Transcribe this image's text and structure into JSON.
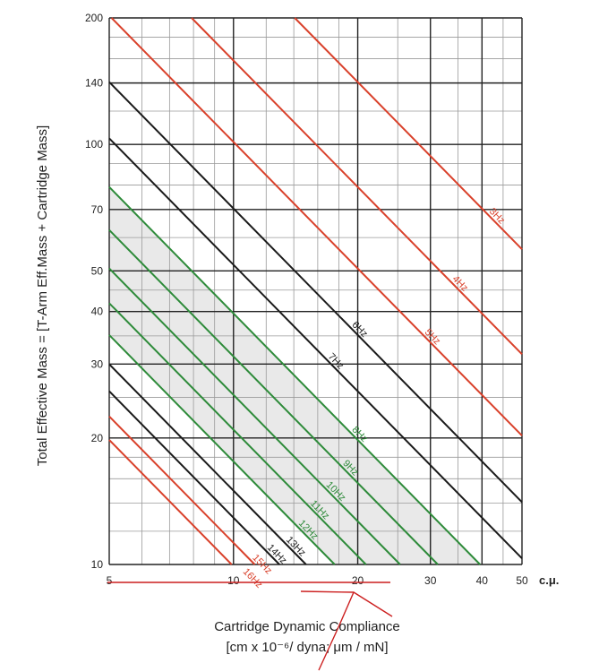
{
  "chart_data": {
    "type": "line",
    "title": "",
    "xlabel": "Cartridge Dynamic Compliance",
    "xlabel_units": "[cm x 10⁻⁶/ dyna; μm / mN]",
    "x_unit_tag": "c.μ.",
    "ylabel": "Total Effective Mass = [T-Arm Eff.Mass + Cartridge Mass]",
    "x_scale": "log",
    "y_scale": "log",
    "xlim": [
      5,
      50
    ],
    "ylim": [
      10,
      200
    ],
    "x_ticks": [
      "5",
      "10",
      "20",
      "30",
      "40",
      "50"
    ],
    "y_ticks": [
      "10",
      "20",
      "30",
      "40",
      "50",
      "70",
      "100",
      "140",
      "200"
    ],
    "grid": true,
    "colors": {
      "red": "#d9412b",
      "black": "#1a1a1a",
      "green": "#2e8b3a",
      "shade": "#e9e9e9",
      "annotation": "#cc1f1f"
    },
    "shaded_region": "between the 8Hz and 12Hz resonance lines",
    "series": [
      {
        "name": "3Hz",
        "color": "red",
        "freq": 3
      },
      {
        "name": "4Hz",
        "color": "red",
        "freq": 4
      },
      {
        "name": "5Hz",
        "color": "red",
        "freq": 5
      },
      {
        "name": "6Hz",
        "color": "black",
        "freq": 6
      },
      {
        "name": "7Hz",
        "color": "black",
        "freq": 7
      },
      {
        "name": "8Hz",
        "color": "green",
        "freq": 8
      },
      {
        "name": "9Hz",
        "color": "green",
        "freq": 9
      },
      {
        "name": "10Hz",
        "color": "green",
        "freq": 10
      },
      {
        "name": "11Hz",
        "color": "green",
        "freq": 11
      },
      {
        "name": "12Hz",
        "color": "green",
        "freq": 12
      },
      {
        "name": "13Hz",
        "color": "black",
        "freq": 13
      },
      {
        "name": "14Hz",
        "color": "black",
        "freq": 14
      },
      {
        "name": "15Hz",
        "color": "red",
        "freq": 15
      },
      {
        "name": "16Hz",
        "color": "red",
        "freq": 16
      }
    ],
    "annotations": [
      {
        "type": "underline",
        "color": "annotation",
        "note": "red line under the x-axis labels"
      },
      {
        "type": "arrow",
        "color": "annotation",
        "note": "hand-drawn arrow pointing to x = 20"
      }
    ]
  }
}
